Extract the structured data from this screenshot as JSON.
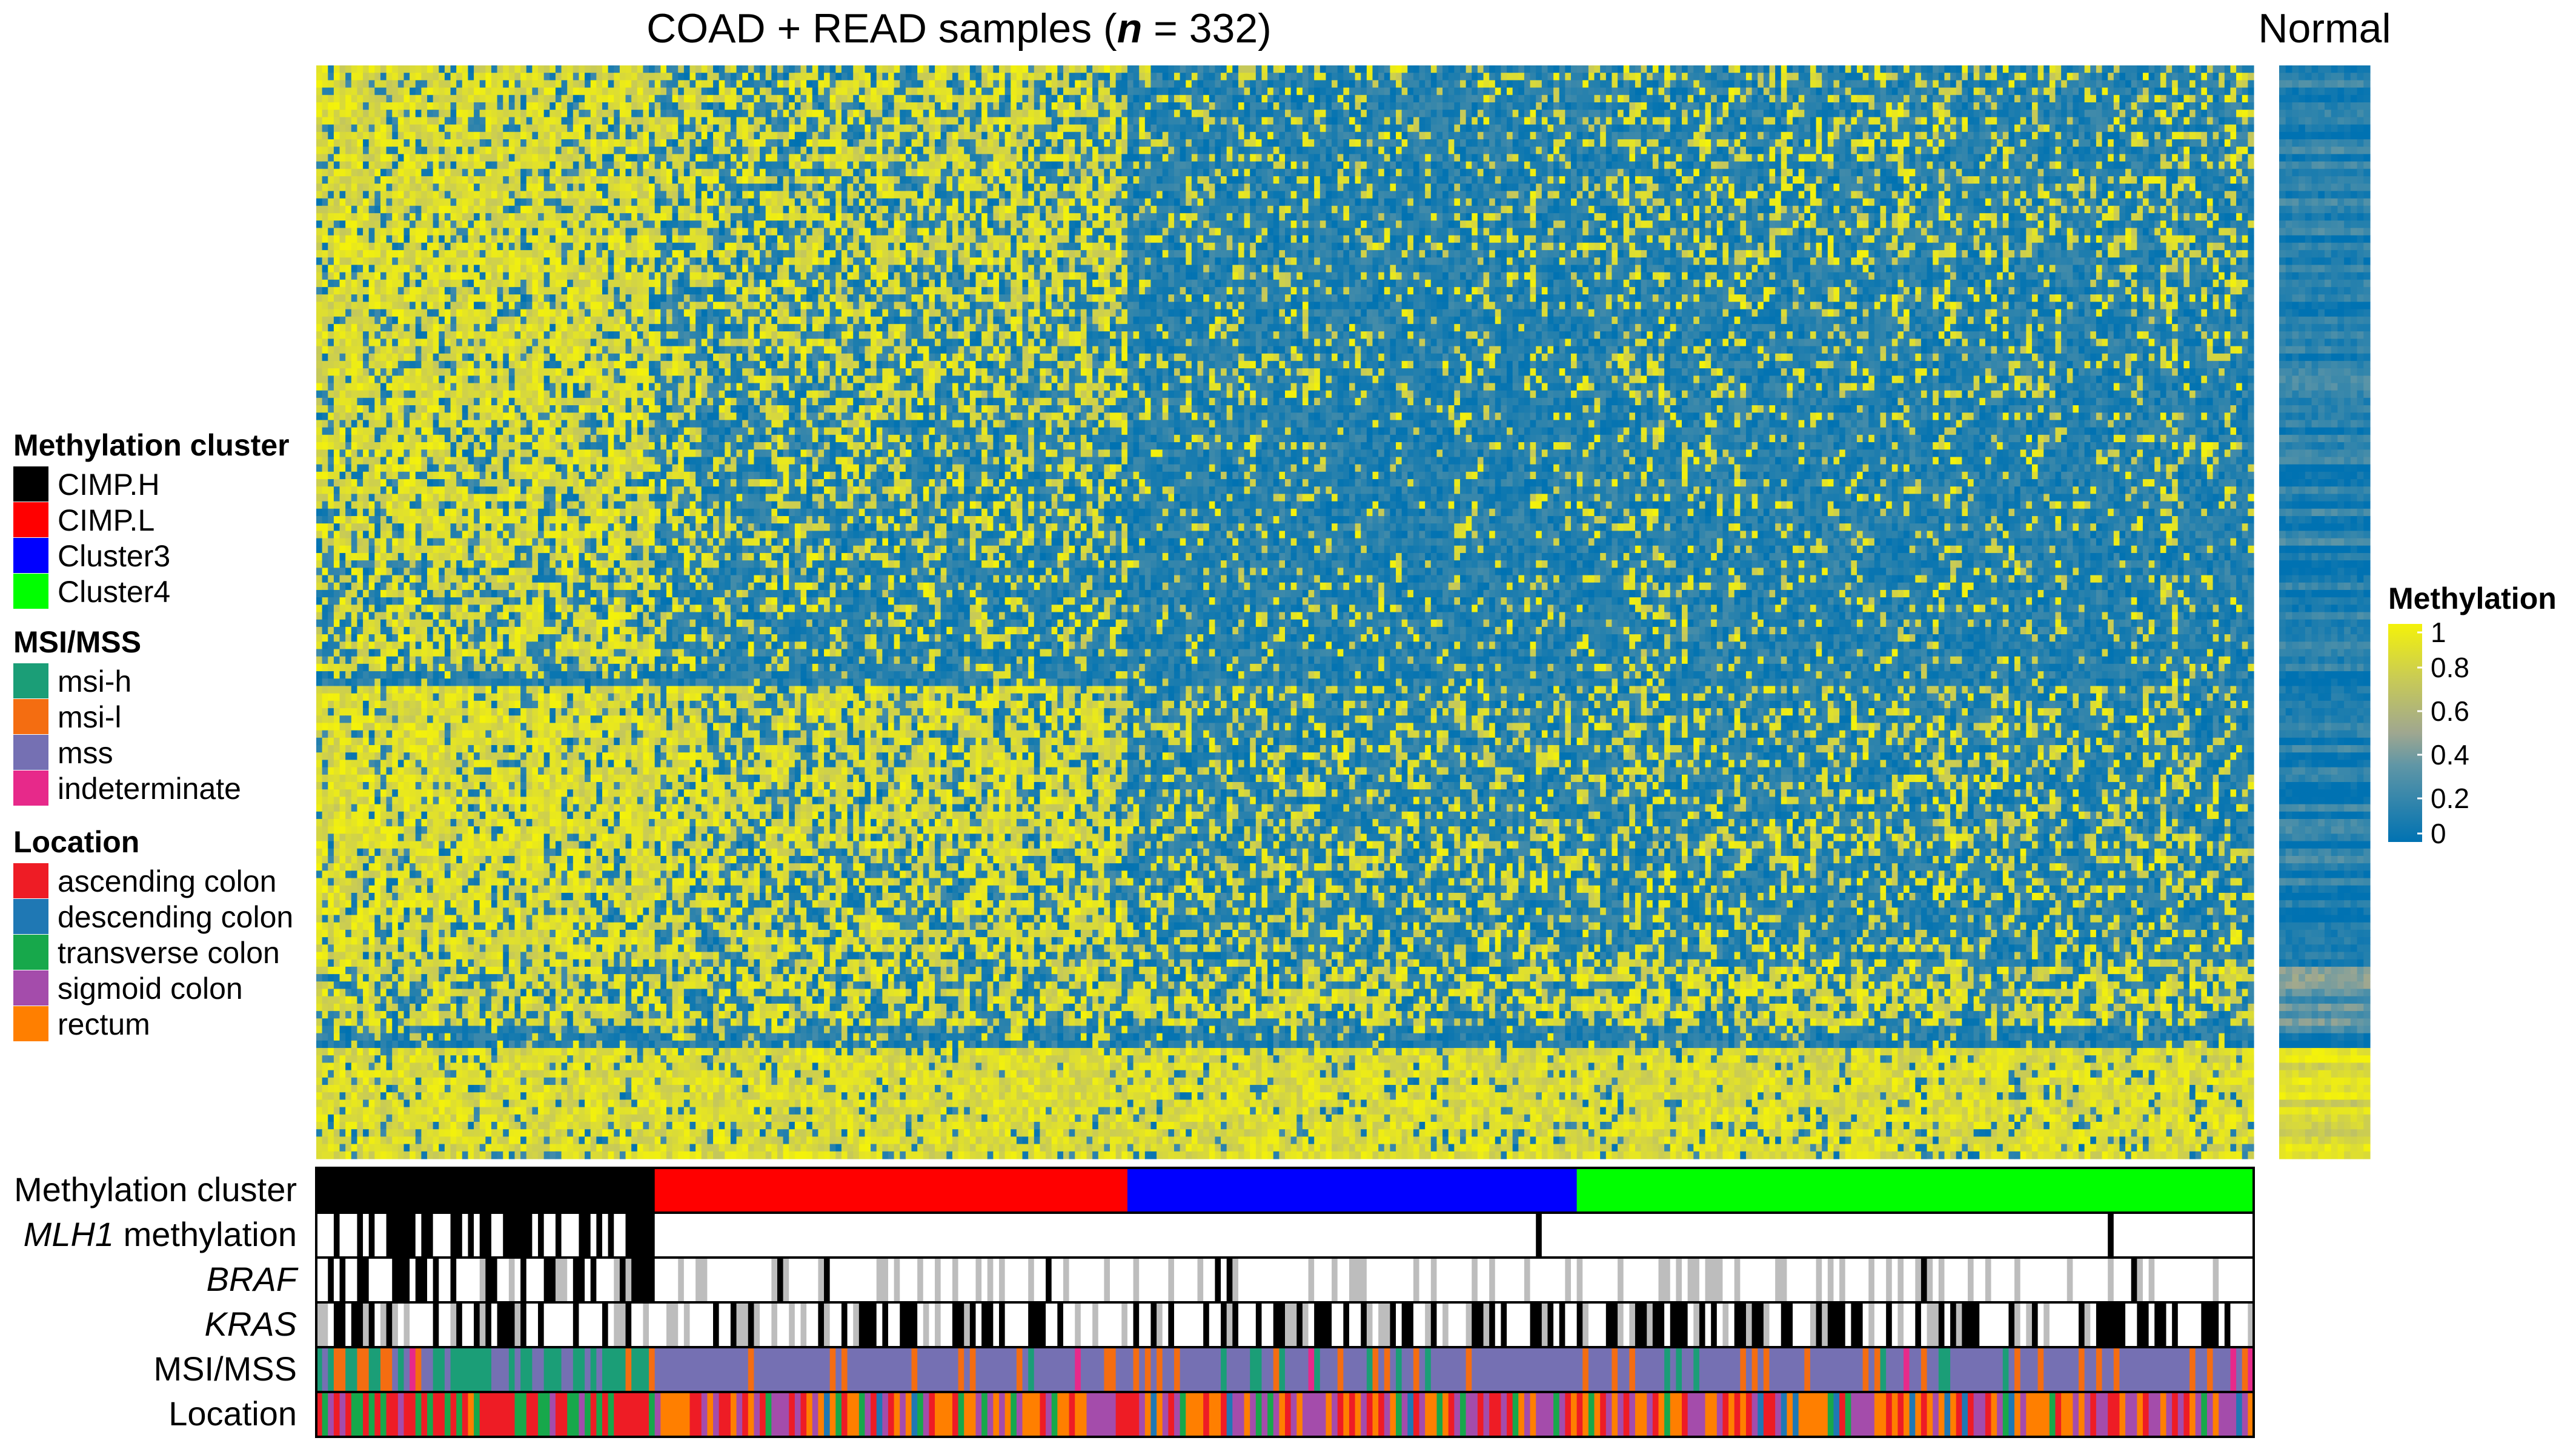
{
  "chart_data": {
    "type": "heatmap",
    "title_main": "COAD + READ samples (",
    "title_n": "n",
    "title_rest": " = 332)",
    "normal_title": "Normal",
    "n_samples": 332,
    "sample_cluster_counts": {
      "CIMP.H": 58,
      "CIMP.L": 81,
      "Cluster3": 77,
      "Cluster4": 116
    },
    "heatmap_row_blocks": [
      {
        "rows": 27,
        "means": [
          0.8,
          0.55,
          0.18,
          0.28
        ]
      },
      {
        "rows": 22,
        "means": [
          0.78,
          0.45,
          0.15,
          0.18
        ]
      },
      {
        "rows": 18,
        "means": [
          0.72,
          0.35,
          0.1,
          0.15
        ]
      },
      {
        "rows": 15,
        "means": [
          0.6,
          0.25,
          0.12,
          0.16
        ]
      },
      {
        "rows": 2,
        "means": [
          0.12,
          0.12,
          0.12,
          0.12
        ]
      },
      {
        "rows": 20,
        "means": [
          0.85,
          0.7,
          0.3,
          0.28
        ]
      },
      {
        "rows": 18,
        "means": [
          0.78,
          0.55,
          0.35,
          0.3
        ]
      },
      {
        "rows": 8,
        "means": [
          0.62,
          0.55,
          0.55,
          0.55
        ]
      },
      {
        "rows": 3,
        "means": [
          0.15,
          0.15,
          0.15,
          0.15
        ]
      },
      {
        "rows": 15,
        "means": [
          0.92,
          0.92,
          0.92,
          0.9
        ]
      }
    ],
    "colorbar": {
      "title": "Methylation",
      "ticks": [
        "1",
        "0.8",
        "0.6",
        "0.4",
        "0.2",
        "0"
      ],
      "tick_values": [
        1,
        0.8,
        0.6,
        0.4,
        0.2,
        0
      ],
      "colors": [
        "#0072b2",
        "#dfe20d"
      ]
    },
    "annotation_rows": [
      {
        "label": "Methylation cluster",
        "italic": false
      },
      {
        "label": "MLH1",
        "suffix": " methylation",
        "italic": true
      },
      {
        "label": "BRAF",
        "italic": true
      },
      {
        "label": "KRAS",
        "italic": true
      },
      {
        "label": "MSI/MSS",
        "italic": false
      },
      {
        "label": "Location",
        "italic": false
      }
    ],
    "legend": [
      {
        "title": "Methylation cluster",
        "items": [
          {
            "label": "CIMP.H",
            "color": "#000000"
          },
          {
            "label": "CIMP.L",
            "color": "#ff0000"
          },
          {
            "label": "Cluster3",
            "color": "#0000ff"
          },
          {
            "label": "Cluster4",
            "color": "#00ff00"
          }
        ]
      },
      {
        "title": "MSI/MSS",
        "items": [
          {
            "label": "msi-h",
            "color": "#1b9e77"
          },
          {
            "label": "msi-l",
            "color": "#f46d11"
          },
          {
            "label": "mss",
            "color": "#7570b3"
          },
          {
            "label": "indeterminate",
            "color": "#e7298a"
          }
        ]
      },
      {
        "title": "Location",
        "items": [
          {
            "label": "ascending colon",
            "color": "#ee1c25"
          },
          {
            "label": "descending colon",
            "color": "#1f78b4"
          },
          {
            "label": "transverse colon",
            "color": "#17a84b"
          },
          {
            "label": "sigmoid colon",
            "color": "#a44cab"
          },
          {
            "label": "rectum",
            "color": "#ff7f00"
          }
        ]
      }
    ],
    "mutation_colors": {
      "present": "#000000",
      "absent": "#ffffff",
      "missing": "#bdbdbd"
    }
  }
}
